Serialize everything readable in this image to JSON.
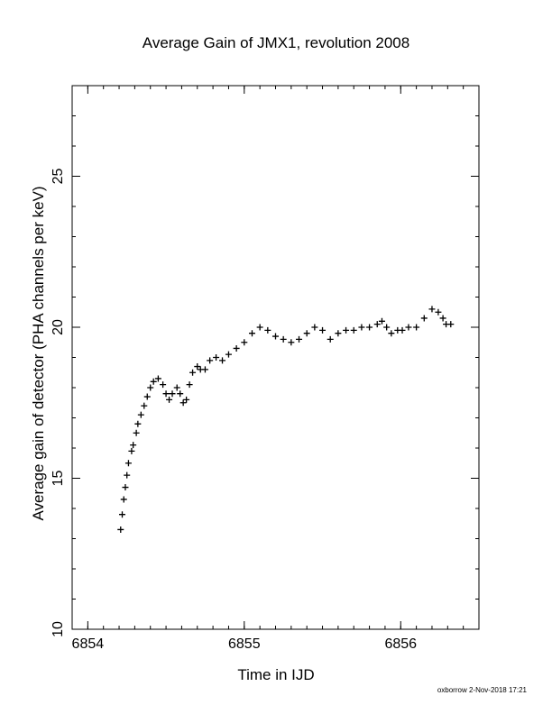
{
  "chart_data": {
    "type": "scatter",
    "title": "Average Gain of JMX1, revolution 2008",
    "xlabel": "Time in IJD",
    "ylabel": "Average gain of detector (PHA channels per keV)",
    "xlim": [
      6853.9,
      6856.5
    ],
    "ylim": [
      10,
      28
    ],
    "x_ticks": [
      {
        "value": 6854,
        "label": "6854"
      },
      {
        "value": 6855,
        "label": "6855"
      },
      {
        "value": 6856,
        "label": "6856"
      }
    ],
    "y_ticks": [
      {
        "value": 10,
        "label": "10"
      },
      {
        "value": 15,
        "label": "15"
      },
      {
        "value": 20,
        "label": "20"
      },
      {
        "value": 25,
        "label": "25"
      }
    ],
    "x_minor_step": 0.1,
    "y_minor_step": 1,
    "marker": "plus",
    "color": "#000000",
    "series": [
      {
        "points": [
          [
            6854.21,
            13.3
          ],
          [
            6854.22,
            13.8
          ],
          [
            6854.23,
            14.3
          ],
          [
            6854.24,
            14.7
          ],
          [
            6854.25,
            15.1
          ],
          [
            6854.26,
            15.5
          ],
          [
            6854.28,
            15.9
          ],
          [
            6854.29,
            16.1
          ],
          [
            6854.31,
            16.5
          ],
          [
            6854.32,
            16.8
          ],
          [
            6854.34,
            17.1
          ],
          [
            6854.36,
            17.4
          ],
          [
            6854.38,
            17.7
          ],
          [
            6854.4,
            18.0
          ],
          [
            6854.42,
            18.2
          ],
          [
            6854.45,
            18.3
          ],
          [
            6854.48,
            18.1
          ],
          [
            6854.5,
            17.8
          ],
          [
            6854.52,
            17.6
          ],
          [
            6854.54,
            17.8
          ],
          [
            6854.57,
            18.0
          ],
          [
            6854.59,
            17.8
          ],
          [
            6854.61,
            17.5
          ],
          [
            6854.63,
            17.6
          ],
          [
            6854.65,
            18.1
          ],
          [
            6854.67,
            18.5
          ],
          [
            6854.7,
            18.7
          ],
          [
            6854.72,
            18.6
          ],
          [
            6854.75,
            18.6
          ],
          [
            6854.78,
            18.9
          ],
          [
            6854.82,
            19.0
          ],
          [
            6854.86,
            18.9
          ],
          [
            6854.9,
            19.1
          ],
          [
            6854.95,
            19.3
          ],
          [
            6855.0,
            19.5
          ],
          [
            6855.05,
            19.8
          ],
          [
            6855.1,
            20.0
          ],
          [
            6855.15,
            19.9
          ],
          [
            6855.2,
            19.7
          ],
          [
            6855.25,
            19.6
          ],
          [
            6855.3,
            19.5
          ],
          [
            6855.35,
            19.6
          ],
          [
            6855.4,
            19.8
          ],
          [
            6855.45,
            20.0
          ],
          [
            6855.5,
            19.9
          ],
          [
            6855.55,
            19.6
          ],
          [
            6855.6,
            19.8
          ],
          [
            6855.65,
            19.9
          ],
          [
            6855.7,
            19.9
          ],
          [
            6855.75,
            20.0
          ],
          [
            6855.8,
            20.0
          ],
          [
            6855.85,
            20.1
          ],
          [
            6855.88,
            20.2
          ],
          [
            6855.91,
            20.0
          ],
          [
            6855.94,
            19.8
          ],
          [
            6855.98,
            19.9
          ],
          [
            6856.01,
            19.9
          ],
          [
            6856.05,
            20.0
          ],
          [
            6856.1,
            20.0
          ],
          [
            6856.15,
            20.3
          ],
          [
            6856.2,
            20.6
          ],
          [
            6856.24,
            20.5
          ],
          [
            6856.27,
            20.3
          ],
          [
            6856.29,
            20.1
          ],
          [
            6856.32,
            20.1
          ]
        ]
      }
    ]
  },
  "footer": {
    "credit": "oxborrow  2-Nov-2018 17:21"
  }
}
